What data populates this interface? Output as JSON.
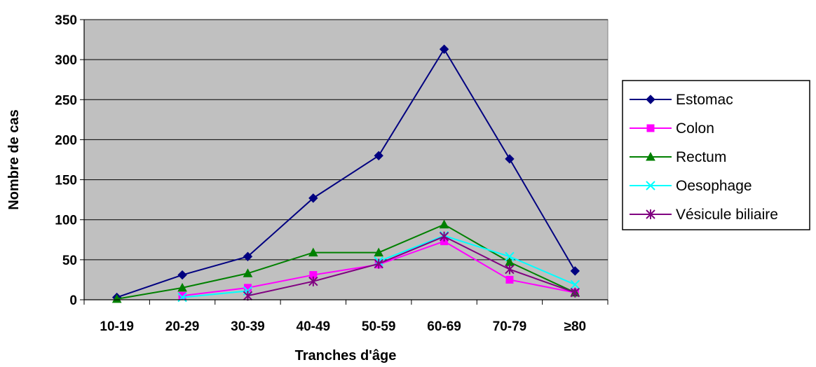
{
  "chart_data": {
    "type": "line",
    "title": "",
    "xlabel": "Tranches d'âge",
    "ylabel": "Nombre de cas",
    "categories": [
      "10-19",
      "20-29",
      "30-39",
      "40-49",
      "50-59",
      "60-69",
      "70-79",
      "≥80"
    ],
    "ylim": [
      0,
      350
    ],
    "yticks": [
      0,
      50,
      100,
      150,
      200,
      250,
      300,
      350
    ],
    "grid": true,
    "legend_position": "right",
    "series": [
      {
        "name": "Estomac",
        "color": "#000080",
        "marker": "diamond",
        "values": [
          3,
          31,
          54,
          127,
          180,
          313,
          176,
          36
        ]
      },
      {
        "name": "Colon",
        "color": "#ff00ff",
        "marker": "square",
        "values": [
          null,
          5,
          15,
          31,
          44,
          73,
          25,
          9
        ]
      },
      {
        "name": "Rectum",
        "color": "#008000",
        "marker": "triangle",
        "values": [
          1,
          15,
          33,
          59,
          59,
          94,
          47,
          9
        ]
      },
      {
        "name": "Oesophage",
        "color": "#00ffff",
        "marker": "x",
        "values": [
          null,
          3,
          11,
          null,
          48,
          80,
          54,
          19
        ]
      },
      {
        "name": "Vésicule biliaire",
        "color": "#800080",
        "marker": "star",
        "values": [
          null,
          null,
          5,
          23,
          45,
          79,
          38,
          9
        ]
      }
    ]
  }
}
